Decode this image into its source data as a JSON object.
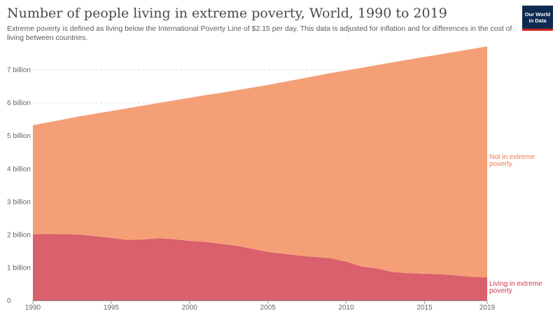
{
  "header": {
    "title": "Number of people living in extreme poverty, World, 1990 to 2019",
    "subtitle": "Extreme poverty is defined as living below the International Poverty Line of $2.15 per day. This data is adjusted for inflation and for differences in the cost of living between countries.",
    "logo_line1": "Our World",
    "logo_line2": "in Data"
  },
  "colors": {
    "not_in_poverty": "#f59f76",
    "in_poverty": "#d9606c",
    "not_in_poverty_label": "#e67a4f",
    "in_poverty_label": "#d1394a",
    "grid": "#dddddd",
    "logo_bg": "#0f2a52",
    "logo_accent": "#ce261e"
  },
  "chart_data": {
    "type": "area",
    "stacked": true,
    "title": "Number of people living in extreme poverty, World, 1990 to 2019",
    "xlabel": "",
    "ylabel": "",
    "xlim": [
      1990,
      2019
    ],
    "ylim": [
      0,
      7800000000
    ],
    "x_ticks": [
      1990,
      1995,
      2000,
      2005,
      2010,
      2015,
      2019
    ],
    "y_ticks": [
      {
        "value": 0,
        "label": "0"
      },
      {
        "value": 1000000000,
        "label": "1 billion"
      },
      {
        "value": 2000000000,
        "label": "2 billion"
      },
      {
        "value": 3000000000,
        "label": "3 billion"
      },
      {
        "value": 4000000000,
        "label": "4 billion"
      },
      {
        "value": 5000000000,
        "label": "5 billion"
      },
      {
        "value": 6000000000,
        "label": "6 billion"
      },
      {
        "value": 7000000000,
        "label": "7 billion"
      }
    ],
    "grid": "horizontal dotted",
    "x": [
      1990,
      1991,
      1992,
      1993,
      1994,
      1995,
      1996,
      1997,
      1998,
      1999,
      2000,
      2001,
      2002,
      2003,
      2004,
      2005,
      2006,
      2007,
      2008,
      2009,
      2010,
      2011,
      2012,
      2013,
      2014,
      2015,
      2016,
      2017,
      2018,
      2019
    ],
    "series": [
      {
        "name": "Living in extreme poverty",
        "color_key": "in_poverty",
        "label_color_key": "in_poverty_label",
        "values": [
          2010000000,
          2020000000,
          2010000000,
          2000000000,
          1950000000,
          1900000000,
          1840000000,
          1850000000,
          1890000000,
          1860000000,
          1810000000,
          1780000000,
          1720000000,
          1660000000,
          1570000000,
          1470000000,
          1420000000,
          1360000000,
          1320000000,
          1280000000,
          1180000000,
          1030000000,
          970000000,
          860000000,
          830000000,
          810000000,
          800000000,
          760000000,
          720000000,
          700000000
        ]
      },
      {
        "name": "Not in extreme poverty",
        "color_key": "not_in_poverty",
        "label_color_key": "not_in_poverty_label",
        "values": [
          3310000000,
          3390000000,
          3490000000,
          3590000000,
          3720000000,
          3850000000,
          3990000000,
          4060000000,
          4100000000,
          4210000000,
          4340000000,
          4450000000,
          4580000000,
          4720000000,
          4890000000,
          5070000000,
          5210000000,
          5360000000,
          5490000000,
          5620000000,
          5800000000,
          6030000000,
          6180000000,
          6370000000,
          6480000000,
          6580000000,
          6670000000,
          6790000000,
          6910000000,
          7010000000
        ]
      }
    ]
  }
}
